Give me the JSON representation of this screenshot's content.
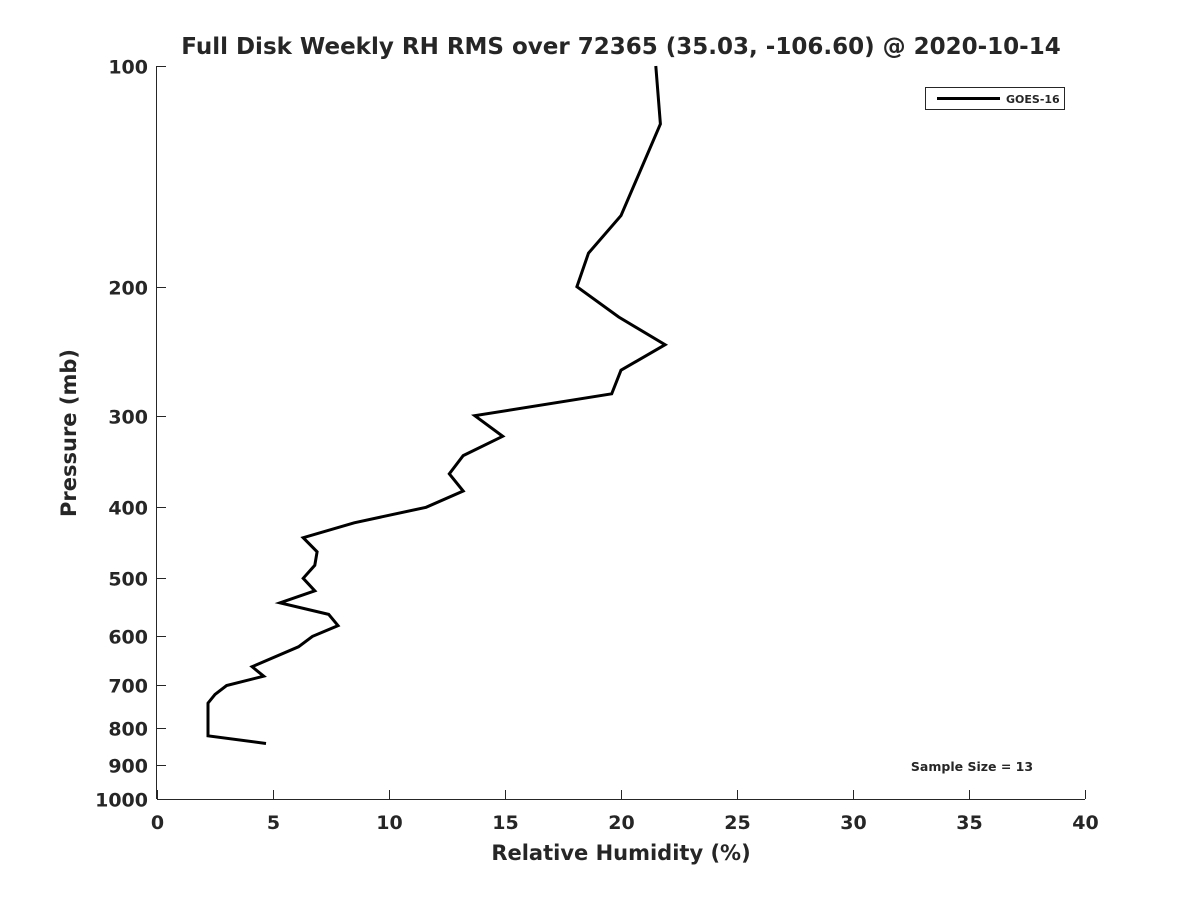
{
  "chart_data": {
    "type": "line",
    "title": "Full Disk Weekly RH RMS over 72365 (35.03, -106.60) @ 2020-10-14",
    "xlabel": "Relative Humidity (%)",
    "ylabel": "Pressure (mb)",
    "xlim": [
      0,
      40
    ],
    "ylim": [
      100,
      1000
    ],
    "yscale": "log",
    "y_reversed": true,
    "xticks": [
      0,
      5,
      10,
      15,
      20,
      25,
      30,
      35,
      40
    ],
    "yticks": [
      100,
      200,
      300,
      400,
      500,
      600,
      700,
      800,
      900,
      1000
    ],
    "grid": false,
    "legend_position": "top-right",
    "annotation": "Sample Size = 13",
    "line_color": "#000000",
    "series": [
      {
        "name": "GOES-16",
        "x": [
          21.5,
          21.7,
          20.0,
          18.6,
          18.1,
          19.9,
          21.9,
          20.0,
          19.6,
          13.7,
          14.9,
          13.2,
          12.6,
          13.2,
          11.6,
          8.5,
          6.3,
          6.9,
          6.8,
          6.3,
          6.8,
          5.3,
          7.4,
          7.8,
          6.7,
          6.1,
          4.1,
          4.6,
          3.0,
          2.5,
          2.2,
          2.2,
          2.2,
          4.7
        ],
        "y": [
          100,
          120,
          160,
          180,
          200,
          220,
          240,
          260,
          280,
          300,
          320,
          340,
          360,
          380,
          400,
          420,
          440,
          460,
          480,
          500,
          520,
          540,
          560,
          580,
          600,
          620,
          660,
          680,
          700,
          720,
          740,
          780,
          820,
          840
        ]
      }
    ]
  }
}
